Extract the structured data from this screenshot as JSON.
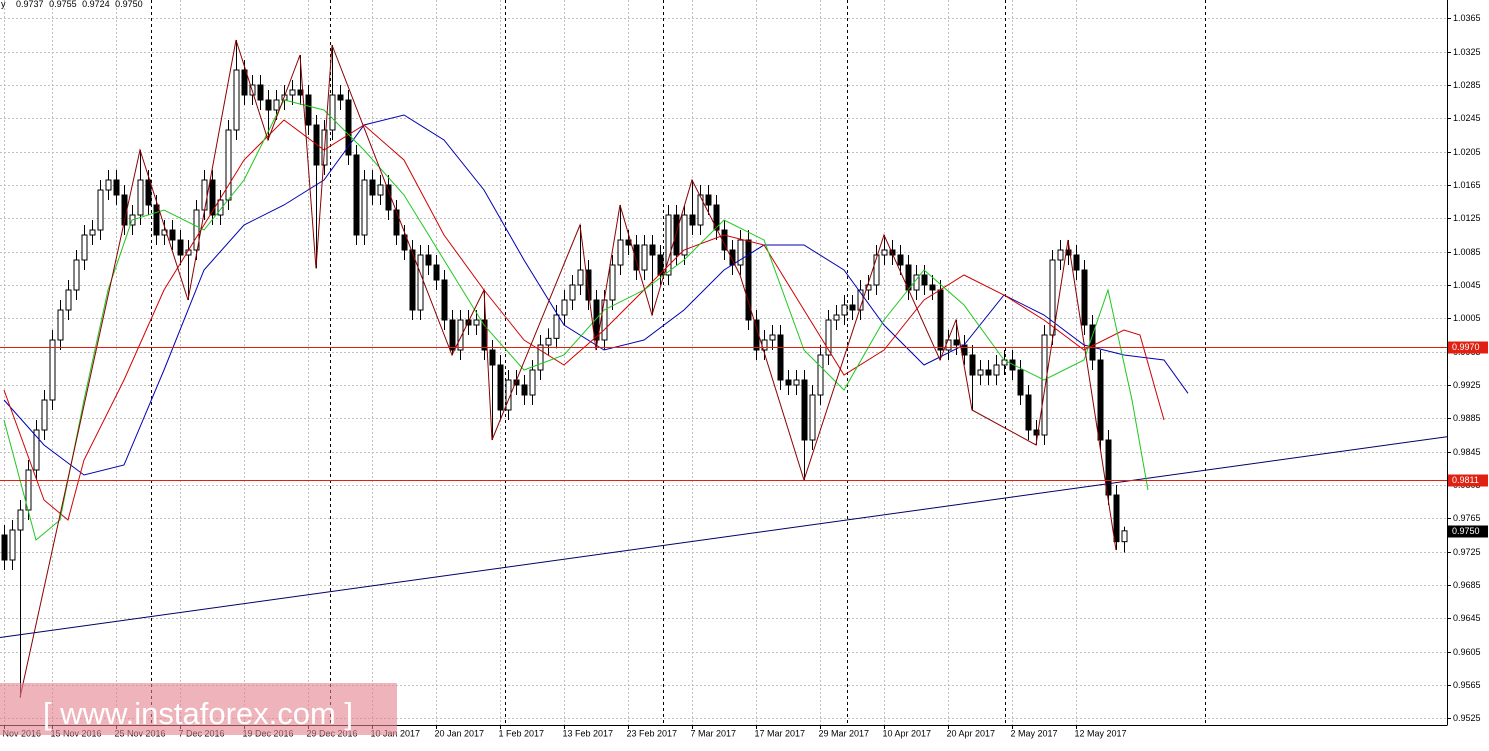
{
  "header": {
    "symbol": "y"
  },
  "watermark": "[ www.instaforex.com ]",
  "chart_data": {
    "type": "candlestick",
    "categories": [
      "Nov 2016",
      null,
      null,
      null,
      null,
      null,
      "15 Nov 2016",
      null,
      null,
      null,
      null,
      null,
      null,
      null,
      "25 Nov 2016",
      null,
      null,
      null,
      null,
      null,
      null,
      null,
      "7 Dec 2016",
      null,
      null,
      null,
      null,
      null,
      null,
      null,
      "19 Dec 2016",
      null,
      null,
      null,
      null,
      null,
      null,
      null,
      "29 Dec 2016",
      null,
      null,
      null,
      null,
      null,
      null,
      null,
      "10 Jan 2017",
      null,
      null,
      null,
      null,
      null,
      null,
      null,
      "20 Jan 2017",
      null,
      null,
      null,
      null,
      null,
      null,
      null,
      "1 Feb 2017",
      null,
      null,
      null,
      null,
      null,
      null,
      null,
      "13 Feb 2017",
      null,
      null,
      null,
      null,
      null,
      null,
      null,
      "23 Feb 2017",
      null,
      null,
      null,
      null,
      null,
      null,
      null,
      "7 Mar 2017",
      null,
      null,
      null,
      null,
      null,
      null,
      null,
      "17 Mar 2017",
      null,
      null,
      null,
      null,
      null,
      null,
      null,
      "29 Mar 2017",
      null,
      null,
      null,
      null,
      null,
      null,
      null,
      "10 Apr 2017",
      null,
      null,
      null,
      null,
      null,
      null,
      null,
      "20 Apr 2017",
      null,
      null,
      null,
      null,
      null,
      null,
      null,
      "2 May 2017",
      null,
      null,
      null,
      null,
      null,
      null,
      null,
      "12 May 2017",
      null,
      null,
      null,
      null,
      null,
      null
    ],
    "open": [
      0.9745,
      0.9715,
      0.9751,
      0.9775,
      0.9823,
      0.9871,
      0.9907,
      0.9979,
      1.0015,
      1.0039,
      1.0075,
      1.0105,
      1.0111,
      1.0159,
      1.0171,
      1.0153,
      1.0117,
      1.0129,
      1.0171,
      1.0141,
      1.0105,
      1.0111,
      1.0099,
      1.0081,
      1.0087,
      1.0135,
      1.0171,
      1.0129,
      1.0147,
      1.0231,
      1.0303,
      1.0273,
      1.0285,
      1.0267,
      1.0255,
      1.0267,
      1.0273,
      1.0279,
      1.0273,
      1.0237,
      1.0189,
      1.0231,
      1.0273,
      1.0267,
      1.0201,
      1.0105,
      1.0171,
      1.0153,
      1.0165,
      1.0135,
      1.0105,
      1.0087,
      1.0015,
      1.0081,
      1.0069,
      1.0051,
      1.0003,
      0.9967,
      1.0003,
      0.9997,
      1.0003,
      0.9967,
      0.9949,
      0.9895,
      0.9931,
      0.9925,
      0.9913,
      0.9943,
      0.9973,
      0.9981,
      1.0009,
      1.0027,
      1.0045,
      1.0063,
      1.0027,
      0.9979,
      1.0027,
      1.0069,
      1.0099,
      1.0093,
      1.0063,
      1.0093,
      1.0081,
      1.0057,
      1.0129,
      1.0081,
      1.0129,
      1.0117,
      1.0153,
      1.0141,
      1.0111,
      1.0087,
      1.0069,
      1.0099,
      1.0003,
      0.9967,
      0.9979,
      0.9985,
      0.9931,
      0.9925,
      0.9931,
      0.9859,
      0.9913,
      0.9961,
      1.0003,
      1.0009,
      1.0021,
      1.0015,
      1.0039,
      1.0045,
      1.0081,
      1.0087,
      1.0081,
      1.0069,
      1.0039,
      1.0057,
      1.0045,
      1.0039,
      0.9967,
      0.9979,
      0.9973,
      0.9961,
      0.9937,
      0.9943,
      0.9937,
      0.9949,
      0.9955,
      0.9943,
      0.9913,
      0.9871,
      0.9865,
      0.9985,
      1.0075,
      1.0087,
      1.0081,
      1.0063,
      0.9997,
      0.9955,
      0.9859,
      0.9793,
      0.9737
    ],
    "high": [
      0.9757,
      0.9763,
      0.9787,
      0.9835,
      0.9883,
      0.9919,
      0.9991,
      1.0027,
      1.0051,
      1.0087,
      1.0117,
      1.0123,
      1.0171,
      1.0183,
      1.0183,
      1.0165,
      1.0141,
      1.0207,
      1.0183,
      1.0153,
      1.0123,
      1.0123,
      1.0111,
      1.0099,
      1.0147,
      1.0183,
      1.0183,
      1.0159,
      1.0243,
      1.0339,
      1.0315,
      1.0297,
      1.0297,
      1.0279,
      1.0279,
      1.0285,
      1.0291,
      1.0321,
      1.0285,
      1.0249,
      1.0243,
      1.0333,
      1.0285,
      1.0279,
      1.0213,
      1.0183,
      1.0183,
      1.0177,
      1.0177,
      1.0147,
      1.0117,
      1.0099,
      1.0093,
      1.0093,
      1.0081,
      1.0063,
      1.0015,
      1.0015,
      1.0015,
      1.0015,
      1.0039,
      0.9979,
      0.9961,
      0.9943,
      0.9943,
      0.9937,
      0.9955,
      0.9985,
      0.9993,
      1.0021,
      1.0039,
      1.0057,
      1.0117,
      1.0075,
      1.0039,
      1.0039,
      1.0081,
      1.0141,
      1.0111,
      1.0105,
      1.0105,
      1.0105,
      1.0093,
      1.0141,
      1.0141,
      1.0141,
      1.0171,
      1.0165,
      1.0165,
      1.0153,
      1.0123,
      1.0099,
      1.0111,
      1.0111,
      1.0015,
      0.9991,
      0.9997,
      0.9997,
      0.9943,
      0.9943,
      0.9943,
      0.9925,
      0.9973,
      1.0015,
      1.0021,
      1.0033,
      1.0033,
      1.0051,
      1.0057,
      1.0093,
      1.0105,
      1.0099,
      1.0093,
      1.0081,
      1.0069,
      1.0069,
      1.0057,
      1.0051,
      0.9991,
      1.0003,
      0.9985,
      0.9973,
      0.9955,
      0.9955,
      0.9961,
      0.9967,
      0.9967,
      0.9955,
      0.9925,
      0.9883,
      0.9997,
      1.0087,
      1.0099,
      1.0099,
      1.0093,
      1.0075,
      1.0009,
      0.9967,
      0.9871,
      0.9805,
      0.9755
    ],
    "low": [
      0.9703,
      0.9703,
      0.955,
      0.9763,
      0.9811,
      0.9859,
      0.9895,
      0.9967,
      1.0003,
      1.0027,
      1.0063,
      1.0093,
      1.0099,
      1.0147,
      1.0141,
      1.0105,
      1.0105,
      1.0117,
      1.0129,
      1.0093,
      1.0093,
      1.0087,
      1.0069,
      1.0027,
      1.0075,
      1.0123,
      1.0117,
      1.0117,
      1.0135,
      1.0219,
      1.0261,
      1.0261,
      1.0255,
      1.0219,
      1.0243,
      1.0255,
      1.0261,
      1.0261,
      1.0225,
      1.0065,
      1.0177,
      1.0219,
      1.0255,
      1.0189,
      1.0093,
      1.0093,
      1.0141,
      1.0141,
      1.0123,
      1.0093,
      1.0075,
      1.0003,
      1.0003,
      1.0057,
      1.0039,
      0.9991,
      0.9961,
      0.9955,
      0.9985,
      0.9985,
      0.9955,
      0.9859,
      0.9883,
      0.9883,
      0.9913,
      0.9901,
      0.9901,
      0.9931,
      0.9961,
      0.9969,
      0.9997,
      1.0015,
      1.0033,
      1.0015,
      0.9967,
      0.9967,
      1.0015,
      1.0057,
      1.0081,
      1.0051,
      1.0051,
      1.0009,
      1.0045,
      1.0045,
      1.0069,
      1.0069,
      1.0105,
      1.0105,
      1.0129,
      1.0099,
      1.0075,
      1.0057,
      1.0057,
      0.9991,
      0.9955,
      0.9955,
      0.9967,
      0.9919,
      0.9913,
      0.9913,
      0.9811,
      0.9847,
      0.9901,
      0.9949,
      0.9991,
      0.9997,
      1.0003,
      1.0003,
      1.0027,
      1.0033,
      1.0069,
      1.0069,
      1.0057,
      1.0027,
      1.0027,
      1.0033,
      1.0027,
      0.9955,
      0.9955,
      0.9961,
      0.9949,
      0.9895,
      0.9925,
      0.9925,
      0.9925,
      0.9937,
      0.9931,
      0.9901,
      0.9859,
      0.9853,
      0.9853,
      0.9973,
      1.0063,
      1.0069,
      1.0051,
      0.9985,
      0.9943,
      0.9847,
      0.9781,
      0.9727,
      0.9724
    ],
    "close": [
      0.9715,
      0.9751,
      0.9775,
      0.9823,
      0.9871,
      0.9907,
      0.9979,
      1.0015,
      1.0039,
      1.0075,
      1.0105,
      1.0111,
      1.0159,
      1.0171,
      1.0153,
      1.0117,
      1.0129,
      1.0171,
      1.0141,
      1.0105,
      1.0111,
      1.0099,
      1.0081,
      1.0087,
      1.0135,
      1.0171,
      1.0129,
      1.0147,
      1.0231,
      1.0303,
      1.0273,
      1.0285,
      1.0267,
      1.0255,
      1.0267,
      1.0273,
      1.0279,
      1.0273,
      1.0237,
      1.0189,
      1.0231,
      1.0273,
      1.0267,
      1.0201,
      1.0105,
      1.0171,
      1.0153,
      1.0165,
      1.0135,
      1.0105,
      1.0087,
      1.0015,
      1.0081,
      1.0069,
      1.0051,
      1.0003,
      0.9967,
      1.0003,
      0.9997,
      1.0003,
      0.9967,
      0.9949,
      0.9895,
      0.9931,
      0.9925,
      0.9913,
      0.9943,
      0.9973,
      0.9981,
      1.0009,
      1.0027,
      1.0045,
      1.0063,
      1.0027,
      0.9979,
      1.0027,
      1.0069,
      1.0099,
      1.0093,
      1.0063,
      1.0093,
      1.0081,
      1.0057,
      1.0129,
      1.0081,
      1.0129,
      1.0117,
      1.0153,
      1.0141,
      1.0111,
      1.0087,
      1.0069,
      1.0099,
      1.0003,
      0.9967,
      0.9979,
      0.9985,
      0.9931,
      0.9925,
      0.9931,
      0.9859,
      0.9913,
      0.9961,
      1.0003,
      1.0009,
      1.0021,
      1.0015,
      1.0039,
      1.0045,
      1.0081,
      1.0087,
      1.0081,
      1.0069,
      1.0039,
      1.0057,
      1.0045,
      1.0039,
      0.9967,
      0.9979,
      0.9973,
      0.9961,
      0.9937,
      0.9943,
      0.9937,
      0.9949,
      0.9955,
      0.9943,
      0.9913,
      0.9871,
      0.9865,
      0.9985,
      1.0075,
      1.0087,
      1.0081,
      1.0063,
      0.9997,
      0.9955,
      0.9859,
      0.9793,
      0.9737,
      0.975
    ],
    "up_color": "#ffffff",
    "down_color": "#000000",
    "ylim": [
      0.9517,
      1.0387
    ],
    "yticks": [
      0.9525,
      0.9565,
      0.9605,
      0.9645,
      0.9685,
      0.9725,
      0.9765,
      0.9805,
      0.9845,
      0.9885,
      0.9925,
      0.9965,
      1.0005,
      1.0045,
      1.0085,
      1.0125,
      1.0165,
      1.0205,
      1.0245,
      1.0285,
      1.0325,
      1.0365
    ],
    "grid": true,
    "overlays": [
      {
        "color": "#000066",
        "x": [
          -0.5,
          180.4
        ],
        "values": [
          0.9622,
          0.9863
        ]
      },
      {
        "color": "#0000b4",
        "x": [
          0,
          5,
          10,
          15,
          20,
          25,
          30,
          35,
          40,
          45,
          50,
          55,
          60,
          65,
          70,
          75,
          80,
          85,
          90,
          95,
          100,
          105,
          110,
          115,
          120,
          125,
          130,
          135,
          140,
          145,
          148
        ],
        "values": [
          0.9907,
          0.9853,
          0.9817,
          0.9829,
          0.9943,
          1.0063,
          1.0117,
          1.0141,
          1.0171,
          1.0237,
          1.0249,
          1.0219,
          1.0159,
          1.0075,
          0.9997,
          0.9967,
          0.9979,
          1.0015,
          1.0063,
          1.0093,
          1.0093,
          1.0063,
          0.9997,
          0.9949,
          0.9973,
          1.0033,
          1.0009,
          0.9973,
          0.9961,
          0.9955,
          0.9915
        ]
      },
      {
        "color": "#d00000",
        "x": [
          0,
          5,
          8,
          10,
          15,
          20,
          25,
          30,
          35,
          40,
          45,
          50,
          55,
          60,
          65,
          70,
          75,
          80,
          85,
          90,
          95,
          100,
          105,
          110,
          115,
          120,
          125,
          130,
          135,
          140,
          142,
          145
        ],
        "values": [
          0.9919,
          0.9787,
          0.9763,
          0.9835,
          0.9931,
          1.0039,
          1.0117,
          1.0195,
          1.0243,
          1.0207,
          1.0237,
          1.0195,
          1.0105,
          1.0039,
          0.9979,
          0.9949,
          0.9991,
          1.0039,
          1.0087,
          1.0105,
          1.0093,
          1.0015,
          0.9937,
          0.9967,
          1.0027,
          1.0057,
          1.0033,
          1.0003,
          0.9967,
          0.9991,
          0.9985,
          0.9883
        ]
      },
      {
        "color": "#1ec81e",
        "x": [
          0,
          4,
          7,
          10,
          13,
          16,
          20,
          25,
          30,
          35,
          40,
          45,
          50,
          55,
          60,
          65,
          70,
          75,
          80,
          85,
          90,
          95,
          100,
          105,
          110,
          115,
          120,
          125,
          130,
          135,
          138,
          141,
          143
        ],
        "values": [
          0.9883,
          0.9739,
          0.9763,
          0.9907,
          1.0039,
          1.0123,
          1.0135,
          1.0111,
          1.0171,
          1.0267,
          1.0255,
          1.0207,
          1.0153,
          1.0075,
          0.9997,
          0.9943,
          0.9961,
          1.0015,
          1.0039,
          1.0075,
          1.0123,
          1.0099,
          0.9967,
          0.9919,
          1.0003,
          1.0063,
          1.0021,
          0.9955,
          0.9931,
          0.9955,
          1.0039,
          0.9907,
          0.9799
        ]
      },
      {
        "color": "#8b0000",
        "x": [
          2,
          17,
          23,
          29,
          33,
          37,
          39,
          41,
          56,
          60,
          61,
          72,
          74,
          77,
          81,
          86,
          92,
          100,
          110,
          117,
          119,
          121,
          129,
          133,
          139
        ],
        "values": [
          0.955,
          1.0207,
          1.0027,
          1.0339,
          1.0219,
          1.0321,
          1.0065,
          1.0333,
          0.9961,
          1.0039,
          0.9859,
          1.0117,
          0.9967,
          1.0141,
          1.0009,
          1.0171,
          1.0057,
          0.9811,
          1.0105,
          0.9955,
          1.0003,
          0.9895,
          0.9853,
          1.0099,
          0.9727
        ]
      }
    ],
    "levels": [
      {
        "value": 0.997,
        "label": "0.9970",
        "color": "#e02010"
      },
      {
        "value": 0.9811,
        "label": "0.9811",
        "color": "#e02010"
      }
    ],
    "last_price": {
      "value": 0.975,
      "label": "0.9750",
      "color": "#000000"
    }
  }
}
